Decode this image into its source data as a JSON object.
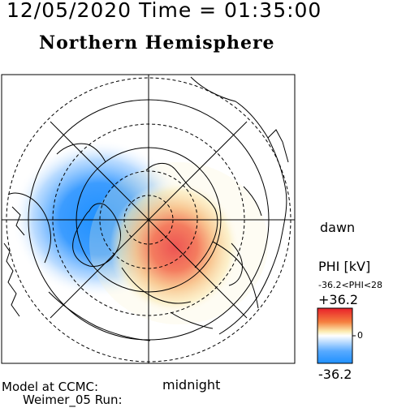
{
  "header": {
    "datetime": "12/05/2020 Time = 01:35:00",
    "hemisphere": "Northern Hemisphere"
  },
  "orientation": {
    "dawn_label": "dawn",
    "midnight_label": "midnight"
  },
  "colorbar": {
    "title": "PHI [kV]",
    "range_text": "-36.2<PHI<28",
    "max_label": "+36.2",
    "mid_label": "0",
    "min_label": "-36.2",
    "colors": [
      "#ffffff",
      "#1e90ff",
      "#e8202a"
    ]
  },
  "footer": {
    "line1": "Model at CCMC:",
    "line2": "Weimer_05 Run:"
  },
  "map": {
    "projection": "polar-north",
    "negative_cell_peak_kv": -36.2,
    "positive_cell_peak_kv": 28
  }
}
